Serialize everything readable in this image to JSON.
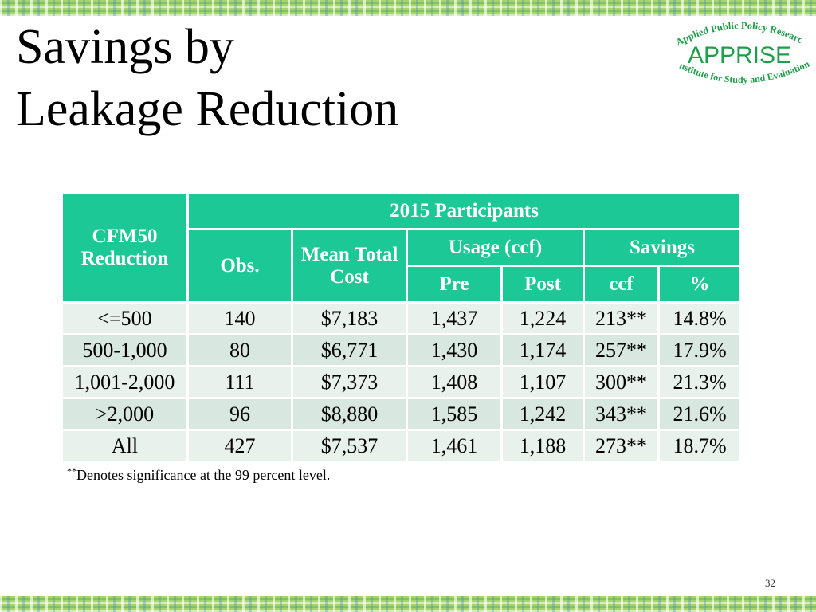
{
  "slide": {
    "title_line1": "Savings by",
    "title_line2": "Leakage Reduction",
    "page_number": "32",
    "footnote_marker": "**",
    "footnote_text": "Denotes significance at the 99 percent level."
  },
  "logo": {
    "top_arc": "Applied Public Policy Research",
    "name": "APPRISE",
    "bottom_arc": "Institute for Study and Evaluation",
    "color": "#1e9e4a"
  },
  "table": {
    "header": {
      "cfm": "CFM50 Reduction",
      "participants": "2015 Participants",
      "obs": "Obs.",
      "mean_total_cost": "Mean Total Cost",
      "usage": "Usage (ccf)",
      "savings": "Savings",
      "pre": "Pre",
      "post": "Post",
      "ccf": "ccf",
      "pct": "%"
    },
    "rows": [
      {
        "cfm": "<=500",
        "obs": "140",
        "cost": "$7,183",
        "pre": "1,437",
        "post": "1,224",
        "ccf": "213**",
        "pct": "14.8%"
      },
      {
        "cfm": "500-1,000",
        "obs": "80",
        "cost": "$6,771",
        "pre": "1,430",
        "post": "1,174",
        "ccf": "257**",
        "pct": "17.9%"
      },
      {
        "cfm": "1,001-2,000",
        "obs": "111",
        "cost": "$7,373",
        "pre": "1,408",
        "post": "1,107",
        "ccf": "300**",
        "pct": "21.3%"
      },
      {
        "cfm": ">2,000",
        "obs": "96",
        "cost": "$8,880",
        "pre": "1,585",
        "post": "1,242",
        "ccf": "343**",
        "pct": "21.6%"
      },
      {
        "cfm": "All",
        "obs": "427",
        "cost": "$7,537",
        "pre": "1,461",
        "post": "1,188",
        "ccf": "273**",
        "pct": "18.7%"
      }
    ]
  },
  "colors": {
    "header_bg": "#1cc896",
    "row_light": "#e9f1ed",
    "row_dark": "#d8e7df"
  }
}
